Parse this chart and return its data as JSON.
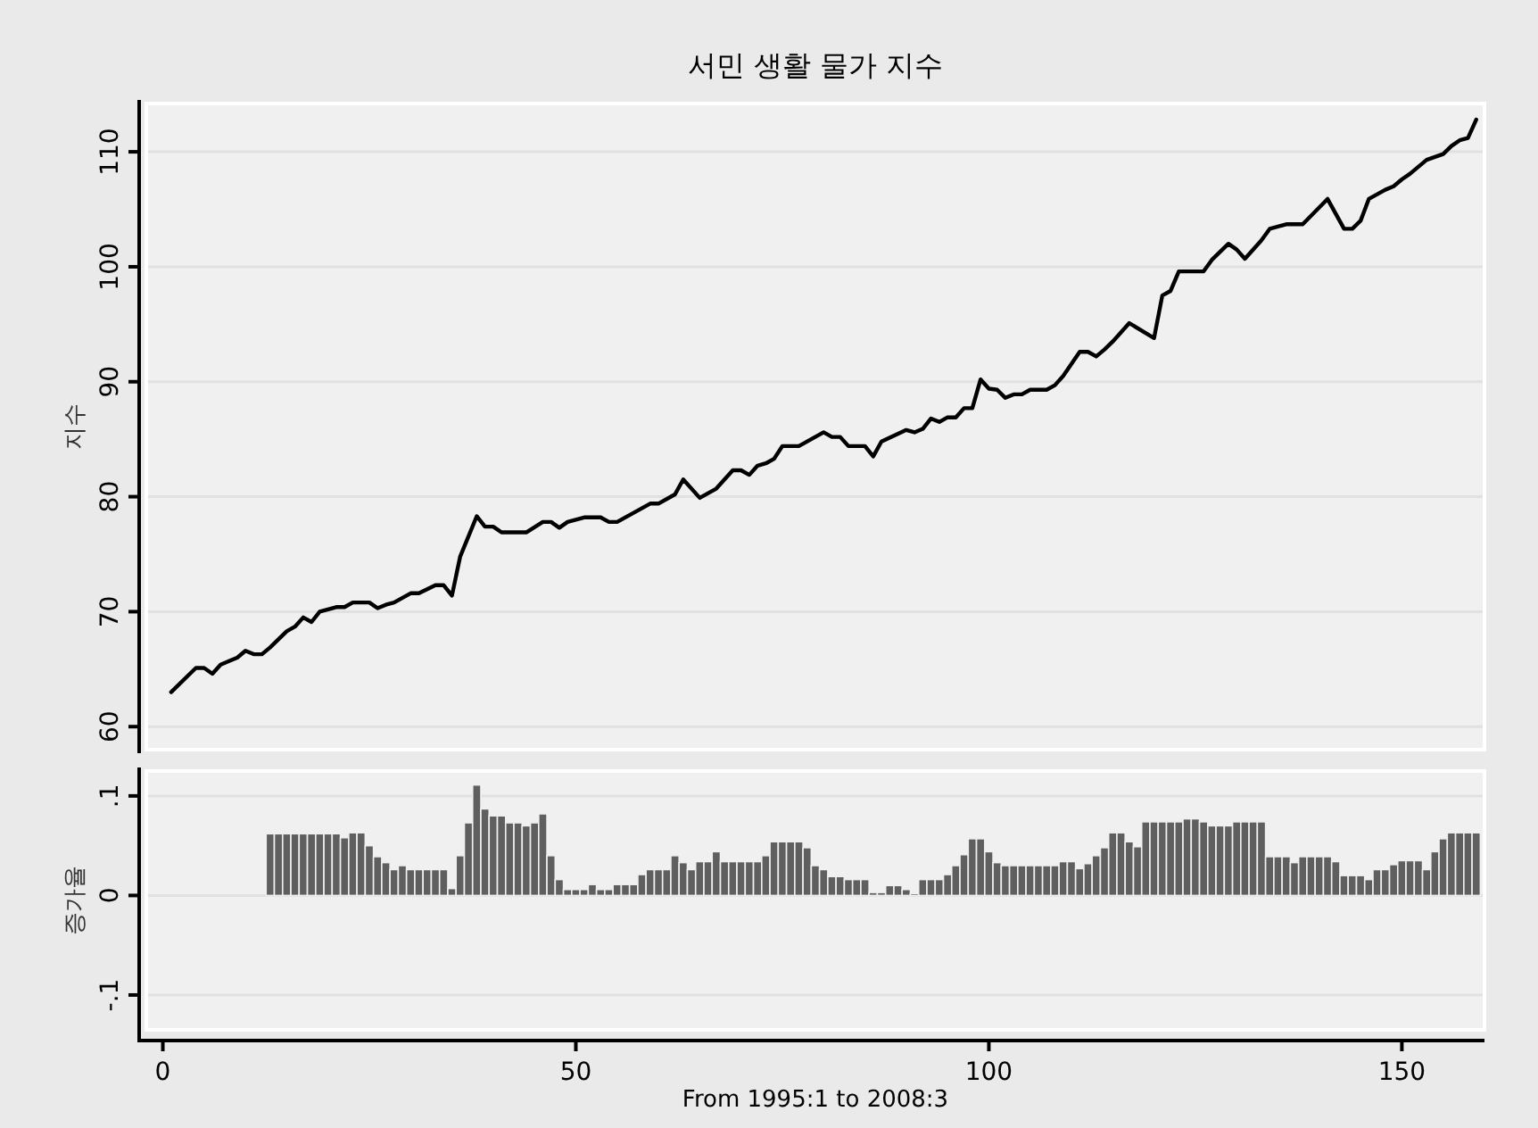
{
  "chart_data": [
    {
      "type": "line",
      "title": "서민 생활 물가 지수",
      "ylabel": "지수",
      "color": "#000000",
      "grid": "y",
      "tick_labels": "y",
      "xlim": [
        -2,
        160
      ],
      "ylim": [
        58,
        114.2
      ],
      "yticks": [
        60,
        70,
        80,
        90,
        100,
        110
      ],
      "x": [
        1,
        4,
        5,
        6,
        7,
        9,
        10,
        11,
        12,
        13,
        14,
        15,
        16,
        17,
        18,
        19,
        21,
        22,
        23,
        25,
        26,
        27,
        28,
        30,
        31,
        33,
        34,
        35,
        36,
        38,
        39,
        40,
        41,
        44,
        46,
        47,
        48,
        49,
        51,
        53,
        54,
        55,
        57,
        59,
        60,
        62,
        63,
        65,
        67,
        69,
        70,
        71,
        72,
        73,
        74,
        75,
        77,
        80,
        81,
        82,
        83,
        85,
        86,
        87,
        90,
        91,
        92,
        93,
        94,
        95,
        96,
        97,
        98,
        99,
        100,
        101,
        102,
        103,
        104,
        105,
        107,
        108,
        109,
        111,
        112,
        113,
        114,
        115,
        117,
        120,
        121,
        122,
        123,
        126,
        127,
        129,
        130,
        131,
        133,
        134,
        136,
        138,
        141,
        142,
        143,
        144,
        145,
        146,
        148,
        149,
        150,
        151,
        153,
        155,
        156,
        157,
        158,
        159
      ],
      "values": [
        63.0,
        65.1,
        65.1,
        64.6,
        65.4,
        66.0,
        66.6,
        66.3,
        66.3,
        66.9,
        67.6,
        68.3,
        68.7,
        69.5,
        69.1,
        70.0,
        70.4,
        70.4,
        70.8,
        70.8,
        70.3,
        70.6,
        70.8,
        71.6,
        71.6,
        72.3,
        72.3,
        71.4,
        74.8,
        78.3,
        77.4,
        77.4,
        76.9,
        76.9,
        77.8,
        77.8,
        77.3,
        77.8,
        78.2,
        78.2,
        77.8,
        77.8,
        78.6,
        79.4,
        79.4,
        80.2,
        81.5,
        79.9,
        80.7,
        82.3,
        82.3,
        81.9,
        82.7,
        82.9,
        83.3,
        84.4,
        84.4,
        85.6,
        85.2,
        85.2,
        84.4,
        84.4,
        83.5,
        84.8,
        85.8,
        85.6,
        85.9,
        86.8,
        86.5,
        86.9,
        86.9,
        87.7,
        87.7,
        90.2,
        89.4,
        89.3,
        88.6,
        88.9,
        88.9,
        89.3,
        89.3,
        89.7,
        90.5,
        92.6,
        92.6,
        92.2,
        92.8,
        93.5,
        95.1,
        93.8,
        97.5,
        97.9,
        99.6,
        99.6,
        100.6,
        102.0,
        101.5,
        100.7,
        102.3,
        103.3,
        103.7,
        103.7,
        105.9,
        104.6,
        103.3,
        103.3,
        104.0,
        105.9,
        106.7,
        107.0,
        107.6,
        108.1,
        109.3,
        109.8,
        110.5,
        111.0,
        111.2,
        112.8
      ]
    },
    {
      "type": "bar",
      "ylabel": "증가율",
      "xlabel": "From 1995:1 to 2008:3",
      "color": "#5f5f5f",
      "grid": "y",
      "xlim": [
        -2,
        160
      ],
      "ylim": [
        -0.135,
        0.125
      ],
      "xticks": [
        0,
        50,
        100,
        150
      ],
      "yticks": [
        {
          "value": -0.1,
          "label": "-.1"
        },
        {
          "value": 0,
          "label": "0"
        },
        {
          "value": 0.1,
          "label": ".1"
        }
      ],
      "x": [
        13,
        14,
        15,
        16,
        17,
        18,
        19,
        20,
        21,
        22,
        23,
        24,
        25,
        26,
        27,
        28,
        29,
        30,
        31,
        32,
        33,
        34,
        35,
        36,
        37,
        38,
        39,
        40,
        41,
        42,
        43,
        44,
        45,
        46,
        47,
        48,
        49,
        50,
        51,
        52,
        53,
        54,
        55,
        56,
        57,
        58,
        59,
        60,
        61,
        62,
        63,
        64,
        65,
        66,
        67,
        68,
        69,
        70,
        71,
        72,
        73,
        74,
        75,
        76,
        77,
        78,
        79,
        80,
        81,
        82,
        83,
        84,
        85,
        86,
        87,
        88,
        89,
        90,
        91,
        92,
        93,
        94,
        95,
        96,
        97,
        98,
        99,
        100,
        101,
        102,
        103,
        104,
        105,
        106,
        107,
        108,
        109,
        110,
        111,
        112,
        113,
        114,
        115,
        116,
        117,
        118,
        119,
        120,
        121,
        122,
        123,
        124,
        125,
        126,
        127,
        128,
        129,
        130,
        131,
        132,
        133,
        134,
        135,
        136,
        137,
        138,
        139,
        140,
        141,
        142,
        143,
        144,
        145,
        146,
        147,
        148,
        149,
        150,
        151,
        152,
        153,
        154,
        155,
        156,
        157,
        158,
        159
      ],
      "values": [
        0.062,
        0.062,
        0.062,
        0.062,
        0.062,
        0.062,
        0.062,
        0.062,
        0.062,
        0.058,
        0.063,
        0.063,
        0.05,
        0.039,
        0.033,
        0.026,
        0.03,
        0.026,
        0.026,
        0.026,
        0.026,
        0.026,
        0.007,
        0.04,
        0.073,
        0.111,
        0.087,
        0.08,
        0.08,
        0.073,
        0.073,
        0.07,
        0.073,
        0.082,
        0.04,
        0.016,
        0.006,
        0.006,
        0.006,
        0.011,
        0.006,
        0.006,
        0.011,
        0.011,
        0.011,
        0.021,
        0.026,
        0.026,
        0.026,
        0.04,
        0.033,
        0.026,
        0.034,
        0.034,
        0.044,
        0.034,
        0.034,
        0.034,
        0.034,
        0.034,
        0.04,
        0.054,
        0.054,
        0.054,
        0.054,
        0.048,
        0.03,
        0.026,
        0.019,
        0.019,
        0.016,
        0.016,
        0.016,
        0.003,
        0.003,
        0.01,
        0.01,
        0.006,
        0.002,
        0.016,
        0.016,
        0.016,
        0.021,
        0.03,
        0.041,
        0.057,
        0.057,
        0.044,
        0.033,
        0.03,
        0.03,
        0.03,
        0.03,
        0.03,
        0.03,
        0.03,
        0.034,
        0.034,
        0.027,
        0.032,
        0.04,
        0.048,
        0.063,
        0.063,
        0.054,
        0.049,
        0.074,
        0.074,
        0.074,
        0.074,
        0.074,
        0.077,
        0.077,
        0.074,
        0.07,
        0.07,
        0.07,
        0.074,
        0.074,
        0.074,
        0.074,
        0.039,
        0.039,
        0.039,
        0.033,
        0.039,
        0.039,
        0.039,
        0.039,
        0.034,
        0.02,
        0.02,
        0.02,
        0.016,
        0.026,
        0.026,
        0.031,
        0.035,
        0.035,
        0.035,
        0.026,
        0.044,
        0.057,
        0.063,
        0.063,
        0.063,
        0.063
      ]
    }
  ]
}
